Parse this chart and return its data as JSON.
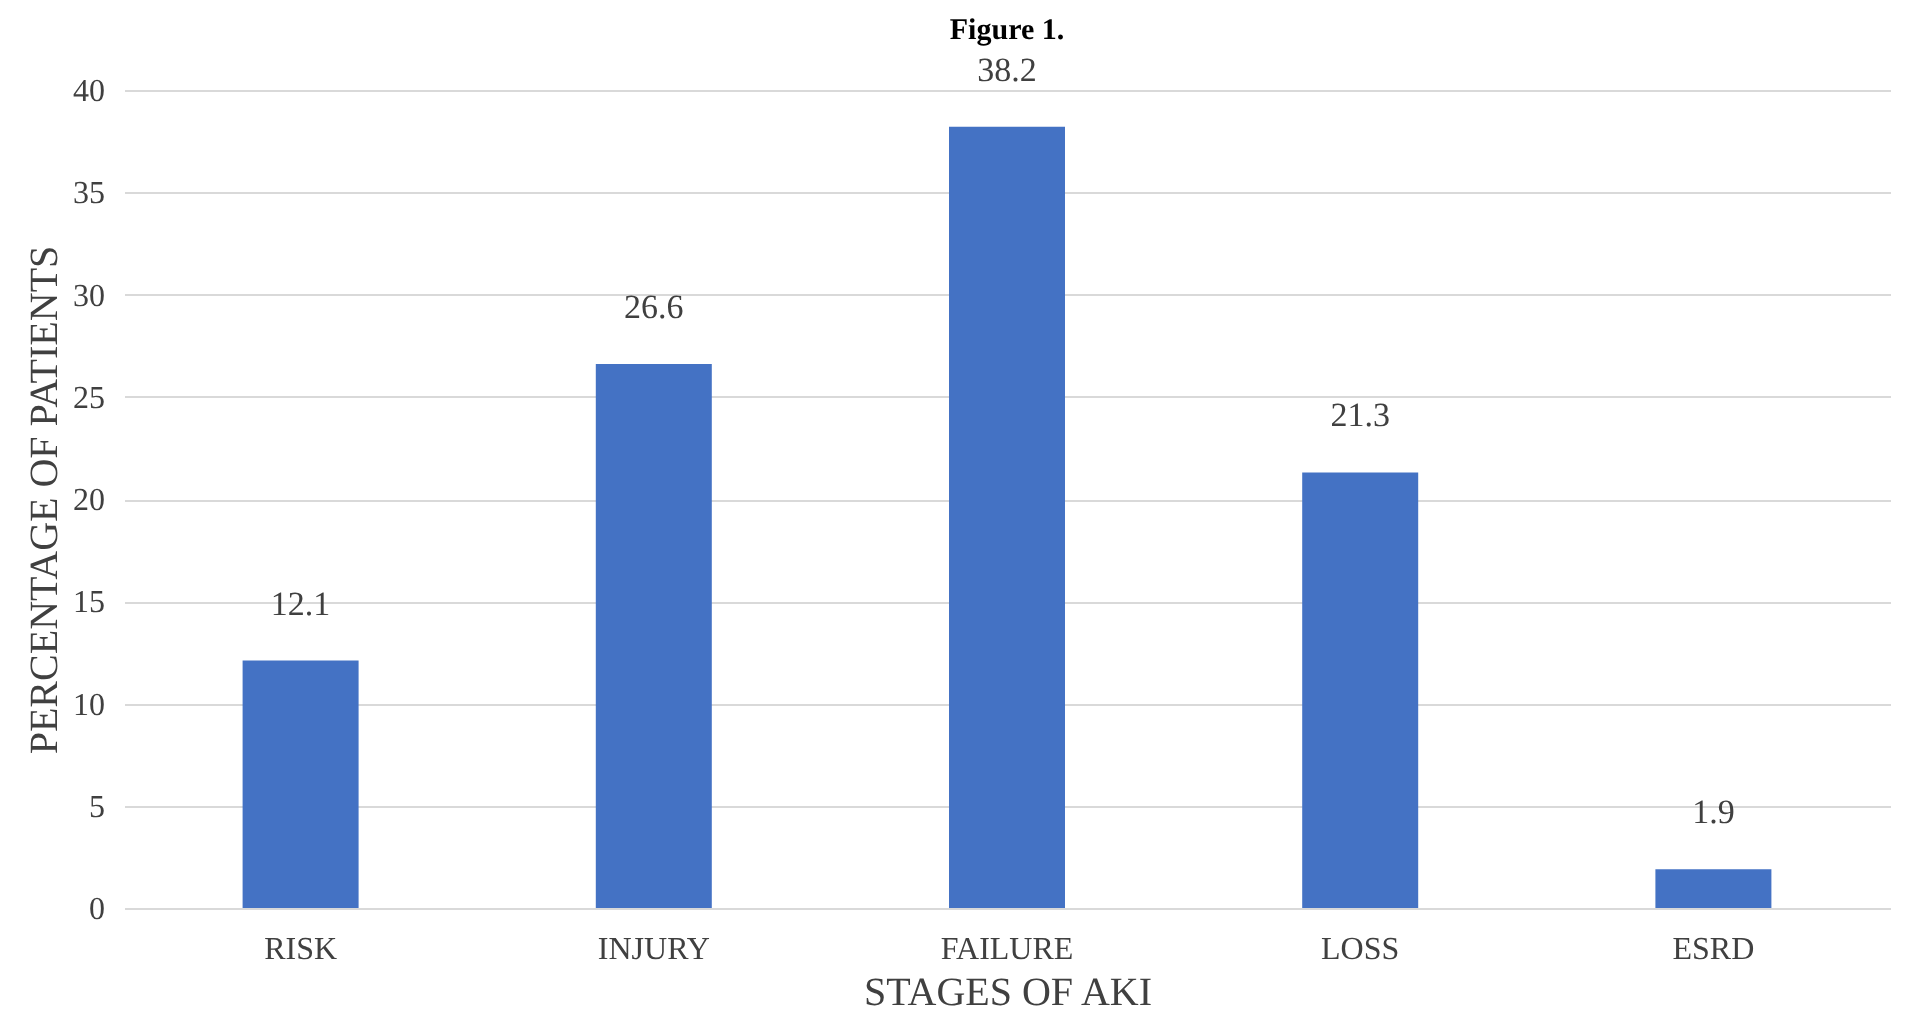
{
  "chart_data": {
    "type": "bar",
    "title": "Figure 1.",
    "xlabel": "STAGES OF AKI",
    "ylabel": "PERCENTAGE OF PATIENTS",
    "categories": [
      "RISK",
      "INJURY",
      "FAILURE",
      "LOSS",
      "ESRD"
    ],
    "values": [
      12.1,
      26.6,
      38.2,
      21.3,
      1.9
    ],
    "color": "#4472c4",
    "ylim": [
      0,
      40
    ],
    "yticks": [
      0,
      5,
      10,
      15,
      20,
      25,
      30,
      35,
      40
    ],
    "grid": "y",
    "data_labels": true
  }
}
